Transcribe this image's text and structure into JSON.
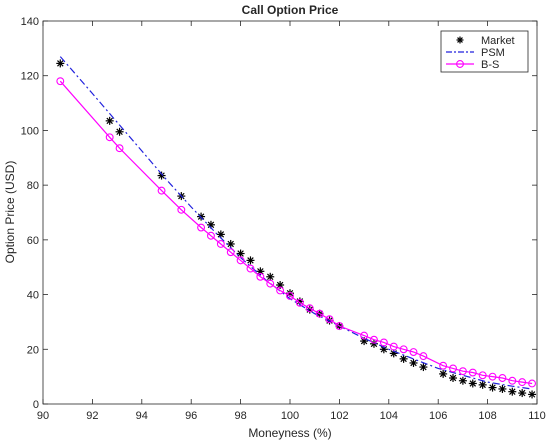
{
  "chart_data": {
    "type": "line",
    "title": "Call Option Price",
    "xlabel": "Moneyness (%)",
    "ylabel": "Option Price (USD)",
    "xlim": [
      90,
      110
    ],
    "ylim": [
      0,
      140
    ],
    "xticks": [
      90,
      92,
      94,
      96,
      98,
      100,
      102,
      104,
      106,
      108,
      110
    ],
    "yticks": [
      0,
      20,
      40,
      60,
      80,
      100,
      120,
      140
    ],
    "grid": false,
    "legend_position": "top-right",
    "series": [
      {
        "name": "Market",
        "style": "asterisk-markers",
        "color": "#000000",
        "x": [
          90.7,
          92.7,
          93.1,
          94.8,
          95.6,
          96.4,
          96.8,
          97.2,
          97.6,
          98.0,
          98.4,
          98.8,
          99.2,
          99.6,
          100.0,
          100.4,
          100.8,
          101.2,
          101.6,
          102.0,
          103.0,
          103.4,
          103.8,
          104.2,
          104.6,
          105.0,
          105.4,
          106.2,
          106.6,
          107.0,
          107.4,
          107.8,
          108.2,
          108.6,
          109.0,
          109.4,
          109.8
        ],
        "y": [
          124.5,
          103.5,
          99.5,
          83.5,
          76.0,
          68.5,
          65.5,
          62.0,
          58.5,
          55.0,
          52.5,
          48.5,
          46.5,
          43.5,
          40.5,
          37.5,
          34.5,
          33.0,
          30.5,
          28.5,
          23.0,
          22.0,
          20.0,
          18.5,
          16.5,
          15.0,
          13.5,
          11.0,
          9.5,
          8.5,
          7.5,
          7.0,
          6.0,
          5.5,
          4.5,
          4.0,
          3.5
        ]
      },
      {
        "name": "PSM",
        "style": "dash-dot",
        "color": "#2222dd",
        "x": [
          90.7,
          92.0,
          93.0,
          94.0,
          95.0,
          96.0,
          97.0,
          98.0,
          99.0,
          100.0,
          101.0,
          102.0,
          103.0,
          104.0,
          105.0,
          106.0,
          107.0,
          108.0,
          109.0,
          109.8
        ],
        "y": [
          127.0,
          113.5,
          103.0,
          92.5,
          82.0,
          72.0,
          62.5,
          53.5,
          45.5,
          38.5,
          33.0,
          28.5,
          24.0,
          20.0,
          16.5,
          13.0,
          10.5,
          8.0,
          6.5,
          5.5
        ]
      },
      {
        "name": "B-S",
        "style": "solid-circles",
        "color": "#ff00ff",
        "x": [
          90.7,
          92.7,
          93.1,
          94.8,
          95.6,
          96.4,
          96.8,
          97.2,
          97.6,
          98.0,
          98.4,
          98.8,
          99.2,
          99.6,
          100.0,
          100.4,
          100.8,
          101.2,
          101.6,
          102.0,
          103.0,
          103.4,
          103.8,
          104.2,
          104.6,
          105.0,
          105.4,
          106.2,
          106.6,
          107.0,
          107.4,
          107.8,
          108.2,
          108.6,
          109.0,
          109.4,
          109.8
        ],
        "y": [
          118.0,
          97.5,
          93.5,
          78.0,
          71.0,
          64.5,
          61.5,
          58.5,
          55.5,
          52.5,
          49.5,
          46.5,
          44.0,
          41.5,
          39.5,
          37.0,
          35.0,
          33.0,
          31.0,
          28.5,
          25.0,
          23.5,
          22.5,
          21.0,
          20.0,
          19.0,
          17.5,
          14.0,
          13.0,
          12.0,
          11.5,
          10.5,
          10.0,
          9.5,
          8.5,
          8.0,
          7.5
        ]
      }
    ]
  }
}
